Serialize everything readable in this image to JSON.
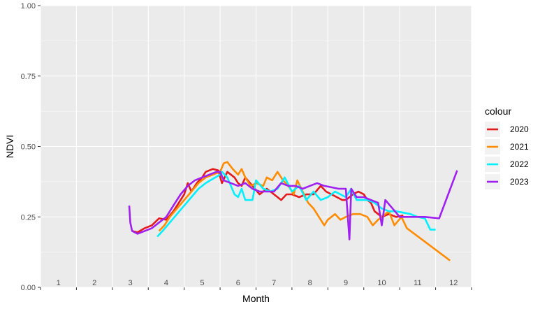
{
  "chart_data": {
    "type": "line",
    "xlabel": "Month",
    "ylabel": "NDVI",
    "xlim": [
      0.5,
      12.5
    ],
    "ylim": [
      0,
      1
    ],
    "x_ticks": [
      1,
      2,
      3,
      4,
      5,
      6,
      7,
      8,
      9,
      10,
      11,
      12
    ],
    "y_ticks": [
      0,
      0.25,
      0.5,
      0.75,
      1
    ],
    "y_tick_labels": [
      "0.00",
      "0.25",
      "0.50",
      "0.75",
      "1.00"
    ],
    "grid": true,
    "panel_background": "#EBEBEB",
    "legend": {
      "title": "colour",
      "position": "right"
    },
    "series": [
      {
        "name": "2020",
        "color": "#E41A1C",
        "points": [
          [
            3.05,
            0.2
          ],
          [
            3.2,
            0.195
          ],
          [
            3.4,
            0.21
          ],
          [
            3.6,
            0.22
          ],
          [
            3.8,
            0.245
          ],
          [
            4.0,
            0.24
          ],
          [
            4.2,
            0.27
          ],
          [
            4.35,
            0.3
          ],
          [
            4.5,
            0.33
          ],
          [
            4.6,
            0.37
          ],
          [
            4.7,
            0.34
          ],
          [
            4.85,
            0.37
          ],
          [
            5.0,
            0.39
          ],
          [
            5.1,
            0.41
          ],
          [
            5.3,
            0.42
          ],
          [
            5.45,
            0.415
          ],
          [
            5.55,
            0.37
          ],
          [
            5.7,
            0.41
          ],
          [
            5.9,
            0.39
          ],
          [
            6.0,
            0.37
          ],
          [
            6.1,
            0.36
          ],
          [
            6.2,
            0.39
          ],
          [
            6.4,
            0.36
          ],
          [
            6.6,
            0.33
          ],
          [
            6.8,
            0.35
          ],
          [
            7.0,
            0.33
          ],
          [
            7.2,
            0.31
          ],
          [
            7.35,
            0.33
          ],
          [
            7.5,
            0.33
          ],
          [
            7.7,
            0.32
          ],
          [
            7.9,
            0.33
          ],
          [
            8.1,
            0.33
          ],
          [
            8.3,
            0.36
          ],
          [
            8.45,
            0.34
          ],
          [
            8.6,
            0.33
          ],
          [
            8.75,
            0.32
          ],
          [
            8.9,
            0.31
          ],
          [
            9.0,
            0.31
          ],
          [
            9.2,
            0.33
          ],
          [
            9.35,
            0.34
          ],
          [
            9.5,
            0.33
          ],
          [
            9.6,
            0.31
          ],
          [
            9.7,
            0.3
          ],
          [
            9.8,
            0.27
          ],
          [
            9.9,
            0.26
          ],
          [
            10.0,
            0.25
          ],
          [
            10.2,
            0.26
          ],
          [
            10.4,
            0.25
          ],
          [
            10.6,
            0.255
          ]
        ]
      },
      {
        "name": "2021",
        "color": "#FF8C00",
        "points": [
          [
            3.8,
            0.2
          ],
          [
            3.95,
            0.22
          ],
          [
            4.1,
            0.25
          ],
          [
            4.3,
            0.28
          ],
          [
            4.5,
            0.31
          ],
          [
            4.7,
            0.34
          ],
          [
            4.9,
            0.37
          ],
          [
            5.1,
            0.39
          ],
          [
            5.3,
            0.4
          ],
          [
            5.5,
            0.41
          ],
          [
            5.6,
            0.44
          ],
          [
            5.7,
            0.445
          ],
          [
            5.85,
            0.42
          ],
          [
            6.0,
            0.4
          ],
          [
            6.1,
            0.42
          ],
          [
            6.2,
            0.39
          ],
          [
            6.35,
            0.36
          ],
          [
            6.5,
            0.37
          ],
          [
            6.7,
            0.36
          ],
          [
            6.8,
            0.39
          ],
          [
            6.95,
            0.38
          ],
          [
            7.1,
            0.41
          ],
          [
            7.25,
            0.38
          ],
          [
            7.4,
            0.36
          ],
          [
            7.55,
            0.33
          ],
          [
            7.65,
            0.38
          ],
          [
            7.8,
            0.34
          ],
          [
            7.95,
            0.3
          ],
          [
            8.1,
            0.28
          ],
          [
            8.25,
            0.25
          ],
          [
            8.4,
            0.22
          ],
          [
            8.5,
            0.24
          ],
          [
            8.7,
            0.26
          ],
          [
            8.85,
            0.24
          ],
          [
            9.0,
            0.25
          ],
          [
            9.2,
            0.26
          ],
          [
            9.4,
            0.26
          ],
          [
            9.6,
            0.25
          ],
          [
            9.75,
            0.22
          ],
          [
            9.9,
            0.24
          ],
          [
            10.0,
            0.25
          ],
          [
            10.2,
            0.27
          ],
          [
            10.35,
            0.22
          ],
          [
            10.55,
            0.25
          ],
          [
            10.7,
            0.21
          ],
          [
            11.9,
            0.095
          ]
        ]
      },
      {
        "name": "2022",
        "color": "#00F0FF",
        "points": [
          [
            3.75,
            0.18
          ],
          [
            3.9,
            0.2
          ],
          [
            4.1,
            0.23
          ],
          [
            4.3,
            0.26
          ],
          [
            4.5,
            0.29
          ],
          [
            4.7,
            0.32
          ],
          [
            4.9,
            0.35
          ],
          [
            5.1,
            0.37
          ],
          [
            5.3,
            0.385
          ],
          [
            5.5,
            0.4
          ],
          [
            5.55,
            0.41
          ],
          [
            5.7,
            0.39
          ],
          [
            5.9,
            0.33
          ],
          [
            6.0,
            0.32
          ],
          [
            6.1,
            0.35
          ],
          [
            6.2,
            0.31
          ],
          [
            6.4,
            0.31
          ],
          [
            6.5,
            0.38
          ],
          [
            6.7,
            0.35
          ],
          [
            6.9,
            0.34
          ],
          [
            7.1,
            0.35
          ],
          [
            7.3,
            0.39
          ],
          [
            7.5,
            0.34
          ],
          [
            7.7,
            0.36
          ],
          [
            7.9,
            0.31
          ],
          [
            8.1,
            0.34
          ],
          [
            8.3,
            0.31
          ],
          [
            8.5,
            0.32
          ],
          [
            8.7,
            0.34
          ],
          [
            8.85,
            0.33
          ],
          [
            9.0,
            0.32
          ],
          [
            9.15,
            0.35
          ],
          [
            9.3,
            0.31
          ],
          [
            9.45,
            0.31
          ],
          [
            9.6,
            0.31
          ],
          [
            9.8,
            0.3
          ],
          [
            10.0,
            0.28
          ],
          [
            10.2,
            0.27
          ],
          [
            10.4,
            0.27
          ],
          [
            10.6,
            0.265
          ],
          [
            10.8,
            0.26
          ],
          [
            11.0,
            0.25
          ],
          [
            11.2,
            0.245
          ],
          [
            11.35,
            0.205
          ],
          [
            11.5,
            0.205
          ]
        ]
      },
      {
        "name": "2023",
        "color": "#A020F0",
        "points": [
          [
            2.97,
            0.29
          ],
          [
            3.0,
            0.23
          ],
          [
            3.05,
            0.2
          ],
          [
            3.2,
            0.19
          ],
          [
            3.4,
            0.2
          ],
          [
            3.6,
            0.21
          ],
          [
            3.8,
            0.23
          ],
          [
            4.0,
            0.25
          ],
          [
            4.2,
            0.29
          ],
          [
            4.4,
            0.33
          ],
          [
            4.6,
            0.36
          ],
          [
            4.8,
            0.38
          ],
          [
            5.0,
            0.39
          ],
          [
            5.2,
            0.4
          ],
          [
            5.4,
            0.41
          ],
          [
            5.5,
            0.41
          ],
          [
            5.6,
            0.38
          ],
          [
            5.8,
            0.37
          ],
          [
            6.0,
            0.36
          ],
          [
            6.2,
            0.37
          ],
          [
            6.4,
            0.35
          ],
          [
            6.6,
            0.34
          ],
          [
            6.8,
            0.34
          ],
          [
            7.0,
            0.34
          ],
          [
            7.2,
            0.37
          ],
          [
            7.4,
            0.36
          ],
          [
            7.6,
            0.36
          ],
          [
            7.8,
            0.35
          ],
          [
            8.0,
            0.36
          ],
          [
            8.2,
            0.37
          ],
          [
            8.4,
            0.36
          ],
          [
            8.6,
            0.355
          ],
          [
            8.8,
            0.35
          ],
          [
            9.0,
            0.35
          ],
          [
            9.1,
            0.17
          ],
          [
            9.15,
            0.35
          ],
          [
            9.3,
            0.32
          ],
          [
            9.5,
            0.32
          ],
          [
            9.7,
            0.31
          ],
          [
            9.9,
            0.3
          ],
          [
            10.0,
            0.22
          ],
          [
            10.1,
            0.31
          ],
          [
            10.3,
            0.28
          ],
          [
            10.5,
            0.25
          ],
          [
            10.8,
            0.25
          ],
          [
            11.2,
            0.25
          ],
          [
            11.6,
            0.245
          ],
          [
            12.1,
            0.415
          ]
        ]
      }
    ]
  }
}
